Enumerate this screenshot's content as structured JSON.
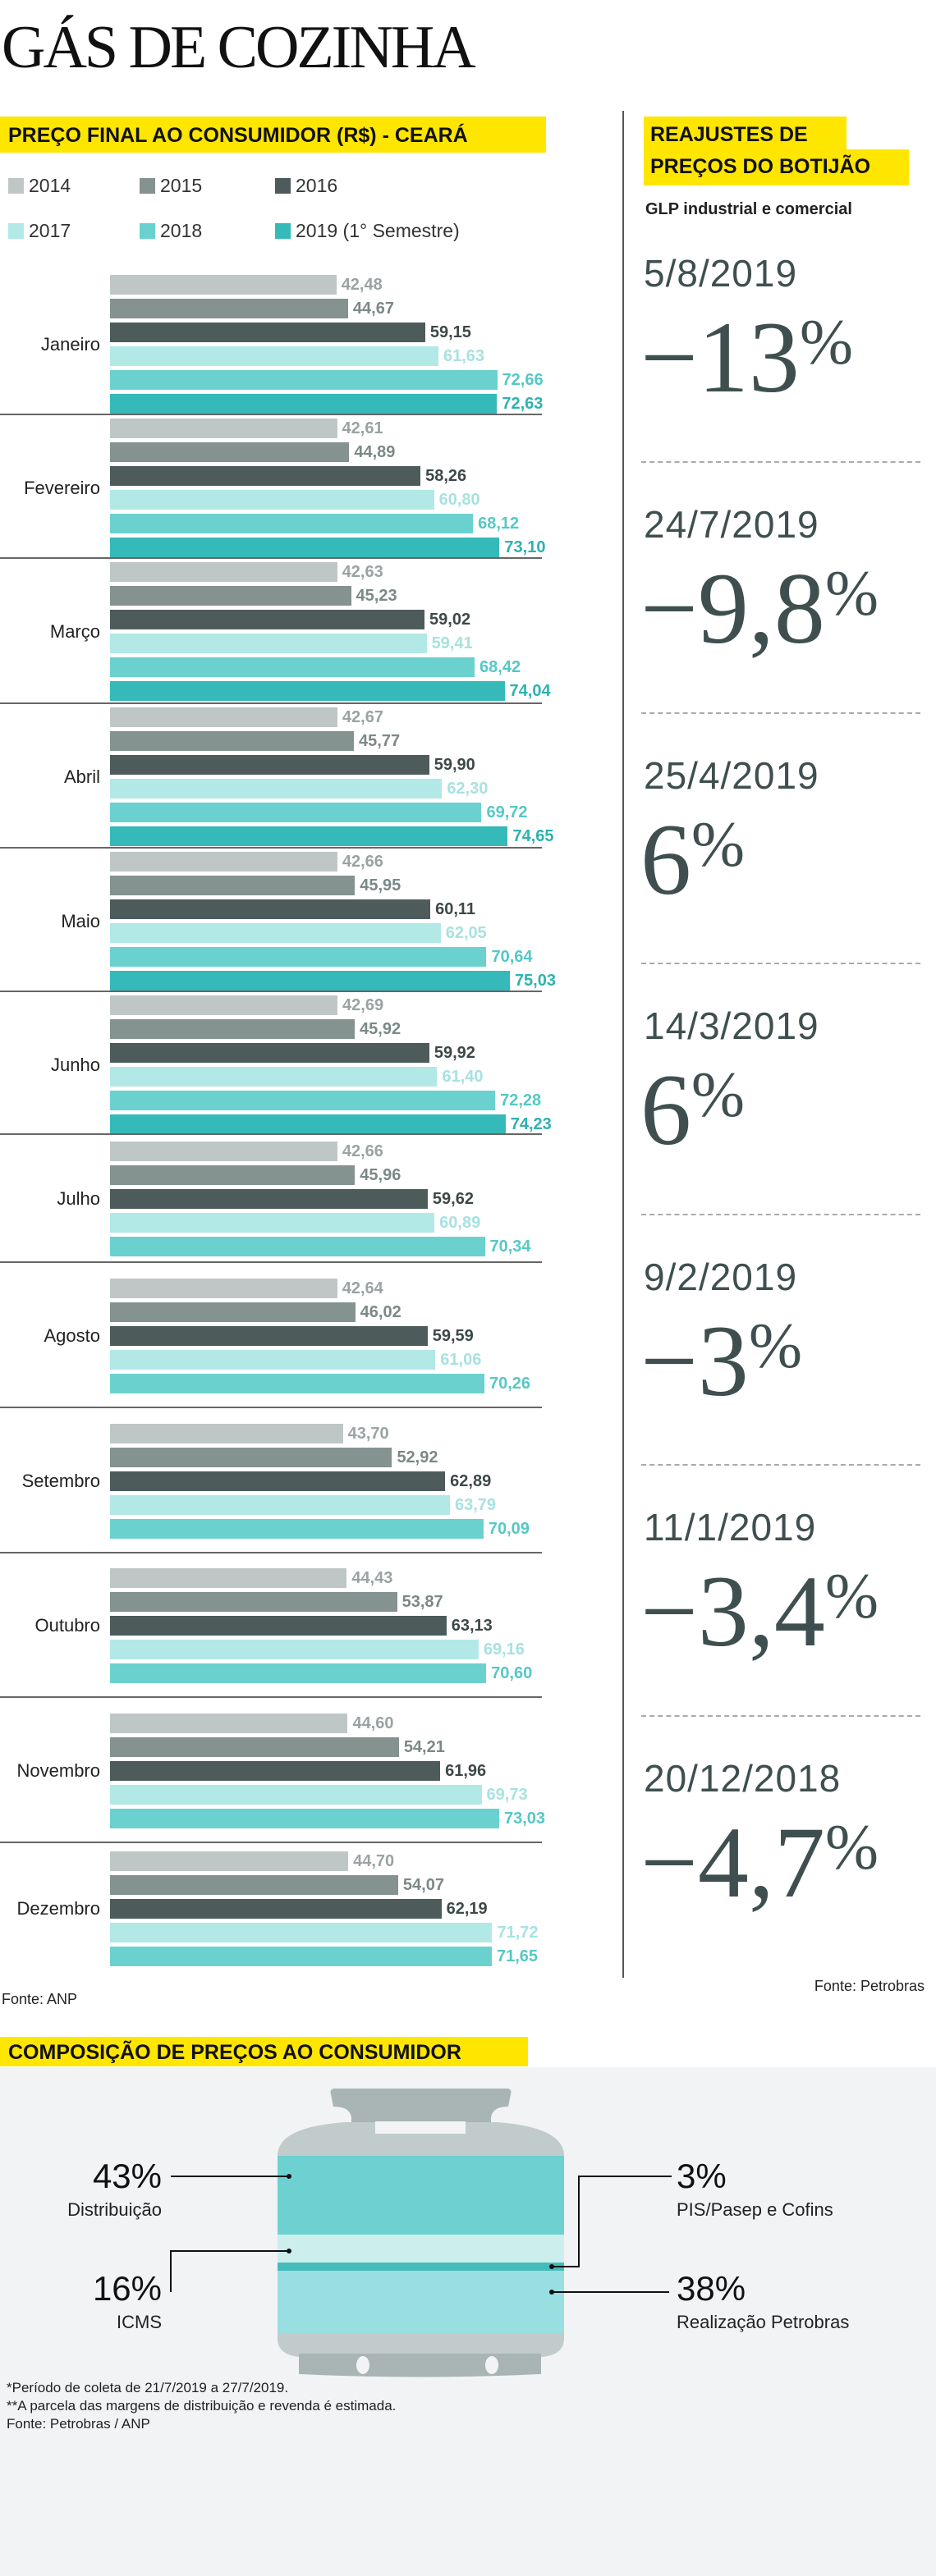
{
  "title": "GÁS DE COZINHA",
  "left_header": "PREÇO FINAL AO CONSUMIDOR (R$) - CEARÁ",
  "legend": [
    {
      "label": "2014",
      "color": "#bfc7c6"
    },
    {
      "label": "2015",
      "color": "#849290"
    },
    {
      "label": "2016",
      "color": "#4d5b5b"
    },
    {
      "label": "2017",
      "color": "#b2e8e6"
    },
    {
      "label": "2018",
      "color": "#6ad1cf"
    },
    {
      "label": "2019 (1° Semestre)",
      "color": "#35b9b9"
    }
  ],
  "chart_data": {
    "type": "bar",
    "orientation": "horizontal",
    "title": "PREÇO FINAL AO CONSUMIDOR (R$) - CEARÁ",
    "categories": [
      "Janeiro",
      "Fevereiro",
      "Março",
      "Abril",
      "Maio",
      "Junho",
      "Julho",
      "Agosto",
      "Setembro",
      "Outubro",
      "Novembro",
      "Dezembro"
    ],
    "series": [
      {
        "name": "2014",
        "color": "#bfc7c6",
        "label_color": "#9aa3a3",
        "values": [
          "42,48",
          "42,61",
          "42,63",
          "42,67",
          "42,66",
          "42,69",
          "42,66",
          "42,64",
          "43,70",
          "44,43",
          "44,60",
          "44,70"
        ]
      },
      {
        "name": "2015",
        "color": "#849290",
        "label_color": "#7b8887",
        "values": [
          "44,67",
          "44,89",
          "45,23",
          "45,77",
          "45,95",
          "45,92",
          "45,96",
          "46,02",
          "52,92",
          "53,87",
          "54,21",
          "54,07"
        ]
      },
      {
        "name": "2016",
        "color": "#4d5b5b",
        "label_color": "#3d4848",
        "values": [
          "59,15",
          "58,26",
          "59,02",
          "59,90",
          "60,11",
          "59,92",
          "59,62",
          "59,59",
          "62,89",
          "63,13",
          "61,96",
          "62,19"
        ]
      },
      {
        "name": "2017",
        "color": "#b2e8e6",
        "label_color": "#a6e2e0",
        "values": [
          "61,63",
          "60,80",
          "59,41",
          "62,30",
          "62,05",
          "61,40",
          "60,89",
          "61,06",
          "63,79",
          "69,16",
          "69,73",
          "71,72"
        ]
      },
      {
        "name": "2018",
        "color": "#6ad1cf",
        "label_color": "#55c8c6",
        "values": [
          "72,66",
          "68,12",
          "68,42",
          "69,72",
          "70,64",
          "72,28",
          "70,34",
          "70,26",
          "70,09",
          "70,60",
          "73,03",
          "71,65"
        ]
      },
      {
        "name": "2019 (1° Semestre)",
        "color": "#35b9b9",
        "label_color": "#2db2b2",
        "values": [
          "72,63",
          "73,10",
          "74,04",
          "74,65",
          "75,03",
          "74,23",
          null,
          null,
          null,
          null,
          null,
          null
        ]
      }
    ],
    "xlim": [
      0,
      80
    ],
    "grid": false,
    "legend_position": "top"
  },
  "left_source": "Fonte: ANP",
  "right_header": {
    "line1": "REAJUSTES DE",
    "line2": "PREÇOS DO BOTIJÃO"
  },
  "right_subtitle": "GLP industrial e comercial",
  "adjustments": [
    {
      "date": "5/8/2019",
      "value": "−13",
      "unit": "%"
    },
    {
      "date": "24/7/2019",
      "value": "−9,8",
      "unit": "%"
    },
    {
      "date": "25/4/2019",
      "value": "6",
      "unit": "%"
    },
    {
      "date": "14/3/2019",
      "value": "6",
      "unit": "%"
    },
    {
      "date": "9/2/2019",
      "value": "−3",
      "unit": "%"
    },
    {
      "date": "11/1/2019",
      "value": "−3,4",
      "unit": "%"
    },
    {
      "date": "20/12/2018",
      "value": "−4,7",
      "unit": "%"
    }
  ],
  "right_source": "Fonte: Petrobras",
  "composition": {
    "title": "COMPOSIÇÃO DE PREÇOS AO CONSUMIDOR",
    "items": [
      {
        "pct": "43%",
        "label": "Distribuição",
        "color": "#6dd1d1"
      },
      {
        "pct": "16%",
        "label": "ICMS",
        "color": "#ccefee"
      },
      {
        "pct": "3%",
        "label": "PIS/Pasep e Cofins",
        "color": "#45bcbc"
      },
      {
        "pct": "38%",
        "label": "Realização Petrobras",
        "color": "#99dfe1"
      }
    ],
    "notes": [
      "*Período de coleta de 21/7/2019 a 27/7/2019.",
      "**A parcela das margens de distribuição e revenda é estimada.",
      "Fonte: Petrobras / ANP"
    ]
  }
}
